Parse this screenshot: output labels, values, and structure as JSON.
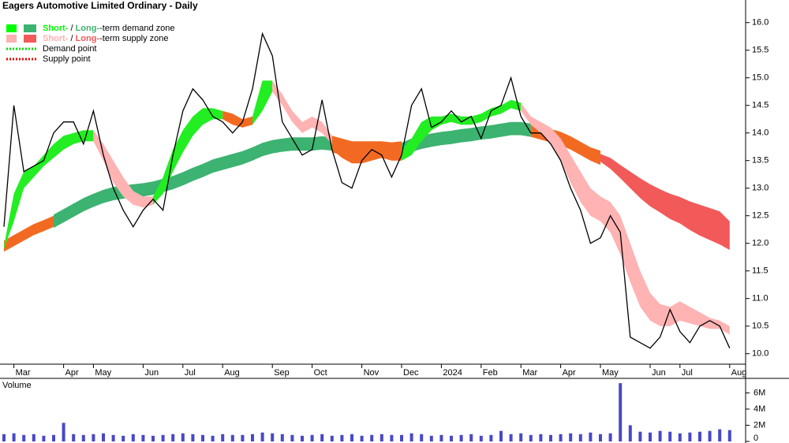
{
  "chart_data": {
    "type": "line",
    "title": "Eagers Automotive Limited Ordinary - Daily",
    "categories": [
      null,
      "Mar",
      null,
      null,
      null,
      null,
      "Apr",
      null,
      null,
      "May",
      null,
      null,
      null,
      null,
      "Jun",
      null,
      null,
      null,
      "Jul",
      null,
      null,
      null,
      "Aug",
      null,
      null,
      null,
      null,
      "Sep",
      null,
      null,
      null,
      "Oct",
      null,
      null,
      null,
      null,
      "Nov",
      null,
      null,
      null,
      "Dec",
      null,
      null,
      null,
      "2024",
      null,
      null,
      null,
      "Feb",
      null,
      null,
      null,
      "Mar",
      null,
      null,
      null,
      "Apr",
      null,
      null,
      null,
      "May",
      null,
      null,
      null,
      null,
      "Jun",
      null,
      null,
      "Jul",
      null,
      null,
      null,
      null,
      "Aug"
    ],
    "values": [
      12.3,
      14.5,
      13.3,
      13.4,
      13.5,
      14.0,
      14.2,
      14.2,
      13.8,
      14.4,
      13.6,
      13.0,
      12.6,
      12.3,
      12.6,
      12.8,
      12.6,
      13.6,
      14.4,
      14.8,
      14.6,
      14.3,
      14.2,
      14.0,
      14.2,
      14.8,
      15.8,
      15.4,
      14.2,
      13.9,
      13.6,
      13.7,
      14.6,
      13.7,
      13.1,
      13.0,
      13.5,
      13.7,
      13.6,
      13.2,
      13.6,
      14.5,
      14.8,
      14.1,
      14.2,
      14.4,
      14.2,
      14.3,
      13.9,
      14.4,
      14.5,
      15.0,
      14.3,
      14.0,
      14.0,
      13.8,
      13.5,
      13.0,
      12.6,
      12.0,
      12.1,
      12.5,
      12.2,
      10.3,
      10.2,
      10.1,
      10.3,
      10.8,
      10.4,
      10.2,
      10.5,
      10.6,
      10.5,
      10.1
    ],
    "color": "#000000",
    "ylim": [
      9.81,
      16.41
    ],
    "yticks": [
      {
        "value": 10,
        "label": "10.0"
      },
      10.5,
      {
        "value": 11,
        "label": "11.0"
      },
      11.5,
      {
        "value": 12,
        "label": "12.0"
      },
      12.5,
      {
        "value": 13,
        "label": "13.0"
      },
      13.5,
      {
        "value": 14,
        "label": "14.0"
      },
      14.5,
      {
        "value": 15,
        "label": "15.0"
      },
      15.5,
      {
        "value": 16,
        "label": "16.0"
      }
    ],
    "bands": [
      {
        "color": "#f26a21",
        "start": 0,
        "upper": [
          12.05,
          12.15,
          12.25,
          12.35,
          12.42,
          12.5
        ],
        "lower": [
          11.85,
          11.95,
          12.05,
          12.15,
          12.22,
          12.3
        ]
      },
      {
        "color": "#3cb371",
        "start": 5,
        "upper": [
          12.52,
          12.62,
          12.72,
          12.82,
          12.9,
          12.97,
          13.02,
          13.05,
          13.07,
          13.09,
          13.12,
          13.17,
          13.22,
          13.29,
          13.37,
          13.44,
          13.52,
          13.57,
          13.62,
          13.67,
          13.74,
          13.82,
          13.87,
          13.9,
          13.92,
          13.92,
          13.92,
          13.94,
          13.92
        ],
        "lower": [
          12.28,
          12.38,
          12.48,
          12.58,
          12.66,
          12.73,
          12.78,
          12.81,
          12.83,
          12.85,
          12.88,
          12.93,
          12.98,
          13.05,
          13.13,
          13.2,
          13.28,
          13.33,
          13.38,
          13.43,
          13.5,
          13.58,
          13.63,
          13.66,
          13.68,
          13.68,
          13.68,
          13.7,
          13.68
        ]
      },
      {
        "color": "#f26a21",
        "start": 33,
        "upper": [
          13.95,
          13.9,
          13.85,
          13.85,
          13.85,
          13.85,
          13.83,
          13.85
        ],
        "lower": [
          13.65,
          13.6,
          13.55,
          13.55,
          13.55,
          13.55,
          13.53,
          13.55
        ]
      },
      {
        "color": "#3cb371",
        "start": 40,
        "upper": [
          13.82,
          13.9,
          13.95,
          13.99,
          14.02,
          14.04,
          14.07,
          14.09,
          14.12,
          14.14,
          14.17,
          14.2,
          14.2,
          14.17
        ],
        "lower": [
          13.58,
          13.66,
          13.71,
          13.75,
          13.78,
          13.8,
          13.83,
          13.85,
          13.88,
          13.9,
          13.93,
          13.96,
          13.96,
          13.93
        ]
      },
      {
        "color": "#f26a21",
        "start": 53,
        "upper": [
          14.17,
          14.12,
          14.07,
          14.02,
          13.94,
          13.84,
          13.74,
          13.68
        ],
        "lower": [
          13.93,
          13.88,
          13.83,
          13.78,
          13.7,
          13.6,
          13.5,
          13.42
        ]
      },
      {
        "color": "#f25a5a",
        "start": 60,
        "upper": [
          13.62,
          13.55,
          13.42,
          13.3,
          13.18,
          13.07,
          12.98,
          12.9,
          12.84,
          12.76,
          12.7,
          12.64,
          12.58,
          12.4
        ],
        "lower": [
          13.48,
          13.35,
          13.18,
          13.0,
          12.82,
          12.67,
          12.56,
          12.44,
          12.36,
          12.24,
          12.14,
          12.06,
          11.98,
          11.88
        ]
      },
      {
        "color": "#22ee22",
        "start": 0,
        "upper": [
          11.95,
          12.9,
          13.3,
          13.4,
          13.6,
          13.8,
          13.95,
          14.0,
          14.05,
          14.05
        ],
        "lower": [
          11.9,
          12.4,
          13.0,
          13.2,
          13.4,
          13.55,
          13.7,
          13.8,
          13.85,
          13.85
        ]
      },
      {
        "color": "#ffb3b3",
        "start": 9,
        "upper": [
          14.05,
          13.8,
          13.5,
          13.2,
          12.95,
          12.85,
          12.85
        ],
        "lower": [
          13.85,
          13.5,
          13.1,
          12.85,
          12.7,
          12.65,
          12.7
        ]
      },
      {
        "color": "#22ee22",
        "start": 15,
        "upper": [
          12.85,
          13.2,
          13.7,
          14.05,
          14.3,
          14.45,
          14.45,
          14.4
        ],
        "lower": [
          12.7,
          12.9,
          13.3,
          13.65,
          13.95,
          14.15,
          14.25,
          14.25
        ]
      },
      {
        "color": "#f26a21",
        "start": 22,
        "upper": [
          14.4,
          14.35,
          14.25,
          14.3
        ],
        "lower": [
          14.25,
          14.15,
          14.1,
          14.15
        ]
      },
      {
        "color": "#22ee22",
        "start": 25,
        "upper": [
          14.3,
          14.95,
          14.95
        ],
        "lower": [
          14.15,
          14.4,
          14.75
        ]
      },
      {
        "color": "#ffb3b3",
        "start": 27,
        "upper": [
          14.95,
          14.7,
          14.4,
          14.2,
          14.3,
          14.2,
          13.95
        ],
        "lower": [
          14.75,
          14.5,
          14.2,
          14.0,
          14.1,
          14.0,
          13.8
        ]
      },
      {
        "color": "#f26a21",
        "start": 33,
        "upper": [
          13.95,
          13.8,
          13.75,
          13.75,
          13.75,
          13.8,
          13.75,
          13.7
        ],
        "lower": [
          13.7,
          13.55,
          13.45,
          13.45,
          13.5,
          13.55,
          13.5,
          13.5
        ]
      },
      {
        "color": "#22ee22",
        "start": 40,
        "upper": [
          13.7,
          13.9,
          14.2,
          14.3,
          14.3,
          14.35,
          14.3,
          14.3,
          14.35,
          14.45,
          14.5,
          14.6,
          14.55
        ],
        "lower": [
          13.5,
          13.6,
          13.85,
          14.05,
          14.15,
          14.2,
          14.15,
          14.15,
          14.2,
          14.3,
          14.35,
          14.45,
          14.4
        ]
      },
      {
        "color": "#ffb3b3",
        "start": 52,
        "upper": [
          14.55,
          14.3,
          14.2,
          14.1,
          13.9,
          13.6,
          13.3,
          13.0,
          12.85,
          12.75,
          12.5,
          12.0,
          11.5,
          11.1,
          10.9,
          10.85,
          10.95,
          10.85,
          10.75,
          10.65,
          10.6,
          10.5
        ],
        "lower": [
          14.4,
          14.15,
          14.0,
          13.8,
          13.5,
          13.1,
          12.75,
          12.5,
          12.4,
          12.2,
          11.8,
          11.3,
          10.85,
          10.6,
          10.5,
          10.5,
          10.6,
          10.55,
          10.5,
          10.45,
          10.45,
          10.35
        ]
      }
    ],
    "legend": [
      {
        "colors": [
          "#00ff00",
          "#3cb371"
        ],
        "short": "Short-",
        "sep": " / ",
        "long": "Long-",
        "rest": "-term demand zone"
      },
      {
        "colors": [
          "#ffb0b0",
          "#f25a5a"
        ],
        "short": "Short-",
        "sep": " / ",
        "long": "Long-",
        "rest": "-term supply zone"
      },
      {
        "color": "#00dd00",
        "text": "Demand point"
      },
      {
        "color": "#ee0000",
        "text": "Supply point"
      }
    ],
    "volume": {
      "label": "Volume",
      "color": "#4848c8",
      "ylim": [
        0,
        7600000
      ],
      "yticks": [
        0,
        {
          "value": 2000000,
          "label": "2M"
        },
        {
          "value": 4000000,
          "label": "4M"
        },
        {
          "value": 6000000,
          "label": "6M"
        }
      ],
      "values": [
        900000,
        1000000,
        800000,
        900000,
        700000,
        800000,
        2300000,
        900000,
        800000,
        900000,
        1000000,
        800000,
        700000,
        900000,
        800000,
        700000,
        800000,
        900000,
        1000000,
        900000,
        800000,
        700000,
        900000,
        800000,
        800000,
        900000,
        1100000,
        1000000,
        900000,
        800000,
        700000,
        800000,
        900000,
        700000,
        800000,
        900000,
        700000,
        800000,
        900000,
        800000,
        800000,
        1000000,
        900000,
        700000,
        800000,
        700000,
        800000,
        900000,
        700000,
        800000,
        1300000,
        900000,
        1000000,
        800000,
        900000,
        800000,
        900000,
        1000000,
        900000,
        1100000,
        900000,
        1000000,
        7200000,
        2000000,
        1200000,
        1100000,
        1300000,
        1200000,
        1000000,
        1100000,
        1200000,
        1300000,
        1500000,
        1400000
      ]
    }
  }
}
